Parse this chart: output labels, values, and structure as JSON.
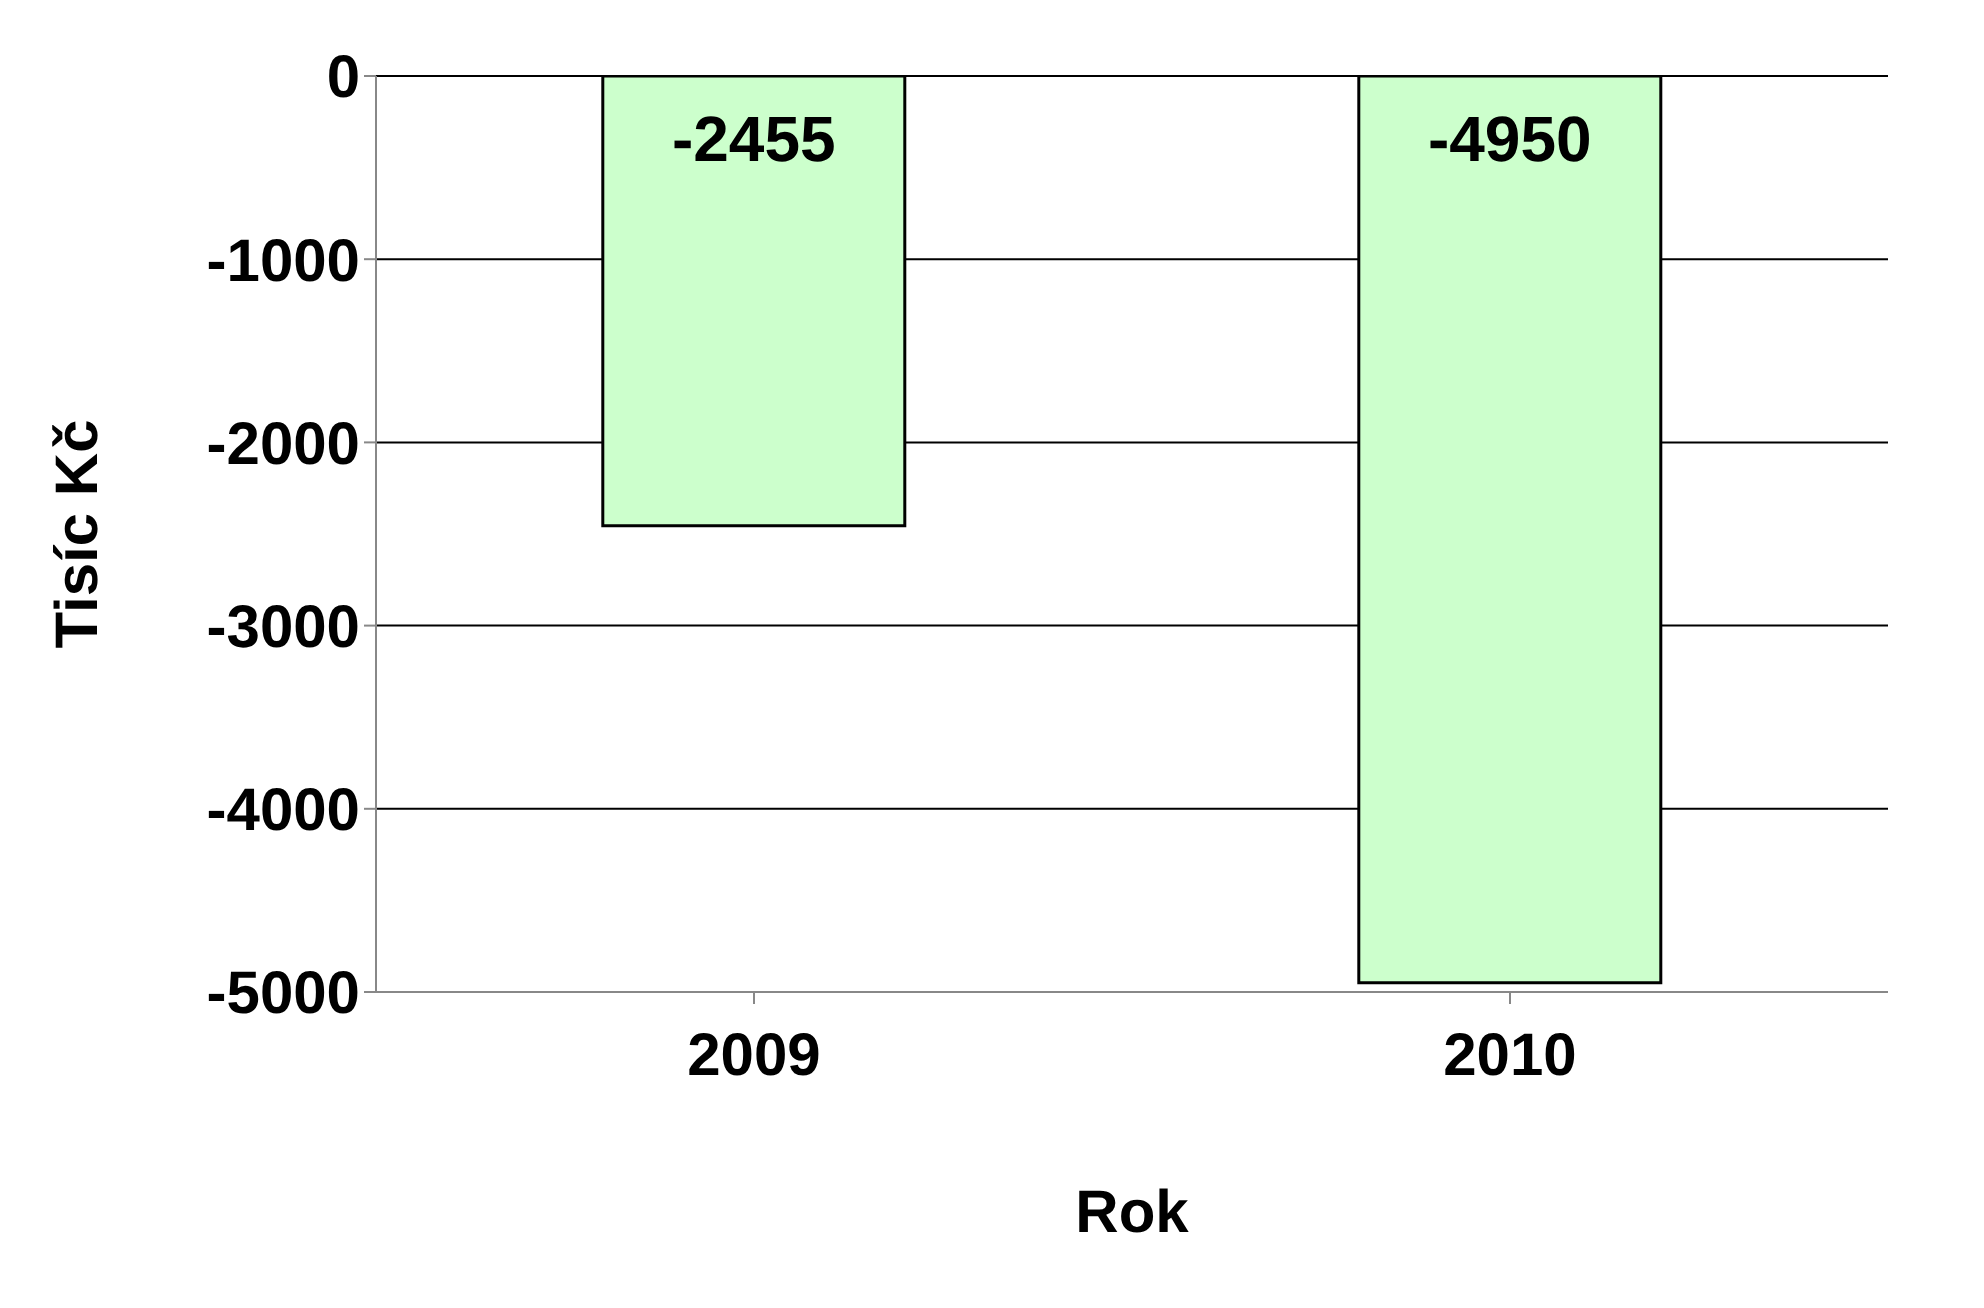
{
  "chart_data": {
    "type": "bar",
    "xlabel": "Rok",
    "ylabel": "Tisíc Kč",
    "categories": [
      "2009",
      "2010"
    ],
    "values": [
      -2455,
      -4950
    ],
    "color": "#ccffcc",
    "ylim": [
      -5000,
      0
    ],
    "yticks": [
      0,
      -1000,
      -2000,
      -3000,
      -4000,
      -5000
    ],
    "grid": "y",
    "data_labels": true
  }
}
